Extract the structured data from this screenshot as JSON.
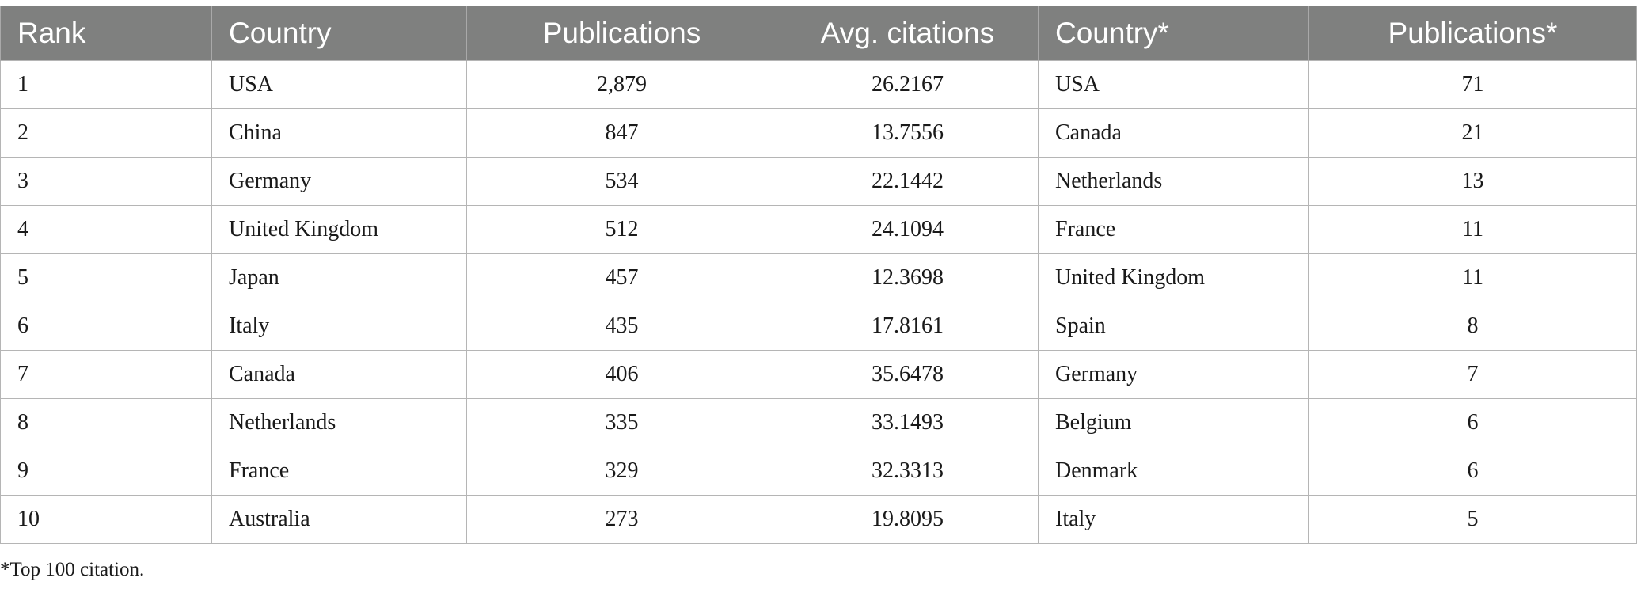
{
  "table": {
    "headers": [
      "Rank",
      "Country",
      "Publications",
      "Avg. citations",
      "Country*",
      "Publications*"
    ],
    "rows": [
      [
        "1",
        "USA",
        "2,879",
        "26.2167",
        "USA",
        "71"
      ],
      [
        "2",
        "China",
        "847",
        "13.7556",
        "Canada",
        "21"
      ],
      [
        "3",
        "Germany",
        "534",
        "22.1442",
        "Netherlands",
        "13"
      ],
      [
        "4",
        "United Kingdom",
        "512",
        "24.1094",
        "France",
        "11"
      ],
      [
        "5",
        "Japan",
        "457",
        "12.3698",
        "United Kingdom",
        "11"
      ],
      [
        "6",
        "Italy",
        "435",
        "17.8161",
        "Spain",
        "8"
      ],
      [
        "7",
        "Canada",
        "406",
        "35.6478",
        "Germany",
        "7"
      ],
      [
        "8",
        "Netherlands",
        "335",
        "33.1493",
        "Belgium",
        "6"
      ],
      [
        "9",
        "France",
        "329",
        "32.3313",
        "Denmark",
        "6"
      ],
      [
        "10",
        "Australia",
        "273",
        "19.8095",
        "Italy",
        "5"
      ]
    ]
  },
  "footnote": "*Top 100 citation.",
  "colors": {
    "header_background": "#7f807f",
    "header_text": "#ffffff",
    "grid_lines": "#b5b5b5"
  }
}
